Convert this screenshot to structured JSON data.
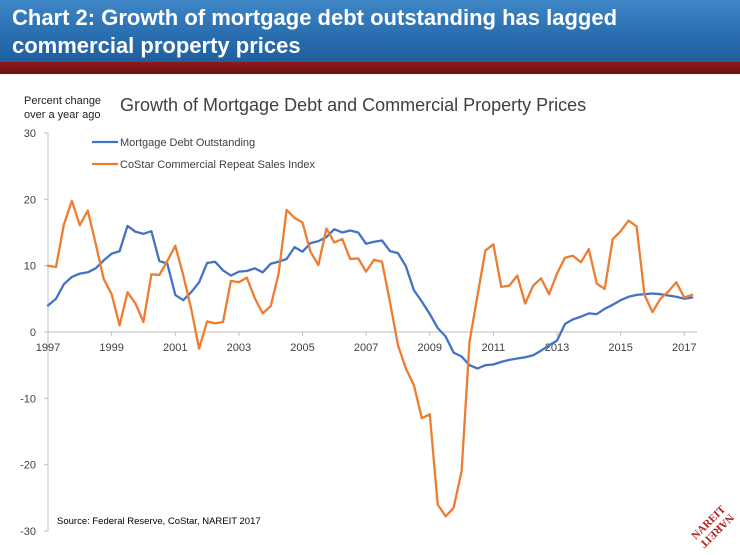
{
  "banner": {
    "title": "Chart 2: Growth of mortgage debt outstanding has lagged commercial property prices"
  },
  "colors": {
    "banner_blue": "#2a6fb0",
    "banner_red": "#7a1616",
    "series_mortgage": "#4472c4",
    "series_costar": "#ed7d31",
    "logo_red": "#b22222"
  },
  "chart_data": {
    "type": "line",
    "title": "Growth of Mortgage Debt and Commercial Property Prices",
    "ylabel_line1": "Percent change",
    "ylabel_line2": "over a year ago",
    "xlabel": "",
    "xlim": [
      1997,
      2017.4
    ],
    "ylim": [
      -30,
      30
    ],
    "yticks": [
      -30,
      -20,
      -10,
      0,
      10,
      20,
      30
    ],
    "xticks": [
      1997,
      1999,
      2001,
      2003,
      2005,
      2007,
      2009,
      2011,
      2013,
      2015,
      2017
    ],
    "grid": false,
    "legend_position": "top-left",
    "source": "Source: Federal Reserve, CoStar, NAREIT 2017",
    "series": [
      {
        "name": "Mortgage Debt Outstanding",
        "color": "#4472c4",
        "x": [
          1997.0,
          1997.25,
          1997.5,
          1997.75,
          1998.0,
          1998.25,
          1998.5,
          1998.75,
          1999.0,
          1999.25,
          1999.5,
          1999.75,
          2000.0,
          2000.25,
          2000.5,
          2000.75,
          2001.0,
          2001.25,
          2001.5,
          2001.75,
          2002.0,
          2002.25,
          2002.5,
          2002.75,
          2003.0,
          2003.25,
          2003.5,
          2003.75,
          2004.0,
          2004.25,
          2004.5,
          2004.75,
          2005.0,
          2005.25,
          2005.5,
          2005.75,
          2006.0,
          2006.25,
          2006.5,
          2006.75,
          2007.0,
          2007.25,
          2007.5,
          2007.75,
          2008.0,
          2008.25,
          2008.5,
          2008.75,
          2009.0,
          2009.25,
          2009.5,
          2009.75,
          2010.0,
          2010.25,
          2010.5,
          2010.75,
          2011.0,
          2011.25,
          2011.5,
          2011.75,
          2012.0,
          2012.25,
          2012.5,
          2012.75,
          2013.0,
          2013.25,
          2013.5,
          2013.75,
          2014.0,
          2014.25,
          2014.5,
          2014.75,
          2015.0,
          2015.25,
          2015.5,
          2015.75,
          2016.0,
          2016.25,
          2016.5,
          2016.75,
          2017.0,
          2017.25
        ],
        "values": [
          4.0,
          5.0,
          7.2,
          8.3,
          8.8,
          9.0,
          9.6,
          10.8,
          11.8,
          12.2,
          16.0,
          15.1,
          14.8,
          15.2,
          10.7,
          10.3,
          5.6,
          4.8,
          6.0,
          7.5,
          10.4,
          10.6,
          9.3,
          8.5,
          9.1,
          9.2,
          9.6,
          9.0,
          10.3,
          10.6,
          11.0,
          12.8,
          12.1,
          13.4,
          13.7,
          14.3,
          15.5,
          15.0,
          15.3,
          15.0,
          13.3,
          13.6,
          13.8,
          12.2,
          11.9,
          9.9,
          6.3,
          4.6,
          2.7,
          0.6,
          -0.7,
          -3.1,
          -3.7,
          -5.0,
          -5.5,
          -5.0,
          -4.9,
          -4.5,
          -4.2,
          -4.0,
          -3.8,
          -3.5,
          -2.8,
          -2.0,
          -1.3,
          1.2,
          1.9,
          2.3,
          2.8,
          2.7,
          3.5,
          4.1,
          4.8,
          5.3,
          5.6,
          5.7,
          5.8,
          5.7,
          5.5,
          5.3,
          5.0,
          5.2
        ]
      },
      {
        "name": "CoStar Commercial Repeat Sales Index",
        "color": "#ed7d31",
        "x": [
          1997.0,
          1997.25,
          1997.5,
          1997.75,
          1998.0,
          1998.25,
          1998.5,
          1998.75,
          1999.0,
          1999.25,
          1999.5,
          1999.75,
          2000.0,
          2000.25,
          2000.5,
          2000.75,
          2001.0,
          2001.25,
          2001.5,
          2001.75,
          2002.0,
          2002.25,
          2002.5,
          2002.75,
          2003.0,
          2003.25,
          2003.5,
          2003.75,
          2004.0,
          2004.25,
          2004.5,
          2004.75,
          2005.0,
          2005.25,
          2005.5,
          2005.75,
          2006.0,
          2006.25,
          2006.5,
          2006.75,
          2007.0,
          2007.25,
          2007.5,
          2007.75,
          2008.0,
          2008.25,
          2008.5,
          2008.75,
          2009.0,
          2009.25,
          2009.5,
          2009.75,
          2010.0,
          2010.25,
          2010.5,
          2010.75,
          2011.0,
          2011.25,
          2011.5,
          2011.75,
          2012.0,
          2012.25,
          2012.5,
          2012.75,
          2013.0,
          2013.25,
          2013.5,
          2013.75,
          2014.0,
          2014.25,
          2014.5,
          2014.75,
          2015.0,
          2015.25,
          2015.5,
          2015.75,
          2016.0,
          2016.25,
          2016.5,
          2016.75,
          2017.0,
          2017.25
        ],
        "values": [
          10.0,
          9.8,
          16.2,
          19.8,
          16.1,
          18.3,
          13.3,
          8.0,
          5.7,
          1.0,
          6.0,
          4.3,
          1.5,
          8.7,
          8.6,
          10.7,
          13.0,
          8.6,
          3.5,
          -2.5,
          1.6,
          1.3,
          1.5,
          7.7,
          7.5,
          8.2,
          5.1,
          2.8,
          3.9,
          8.8,
          18.4,
          17.2,
          16.5,
          12.1,
          10.1,
          15.6,
          13.5,
          14.0,
          11.0,
          11.1,
          9.1,
          10.9,
          10.6,
          4.5,
          -2.0,
          -5.5,
          -8.0,
          -13.0,
          -12.4,
          -26.0,
          -27.8,
          -26.5,
          -21.0,
          -1.5,
          5.5,
          12.3,
          13.2,
          6.8,
          7.0,
          8.5,
          4.3,
          7.0,
          8.1,
          5.7,
          8.8,
          11.2,
          11.5,
          10.5,
          12.5,
          7.3,
          6.5,
          14.0,
          15.2,
          16.8,
          15.9,
          5.6,
          3.0,
          5.0,
          6.1,
          7.5,
          5.2,
          5.6
        ]
      }
    ]
  },
  "logo": {
    "text": "NAREIT"
  }
}
